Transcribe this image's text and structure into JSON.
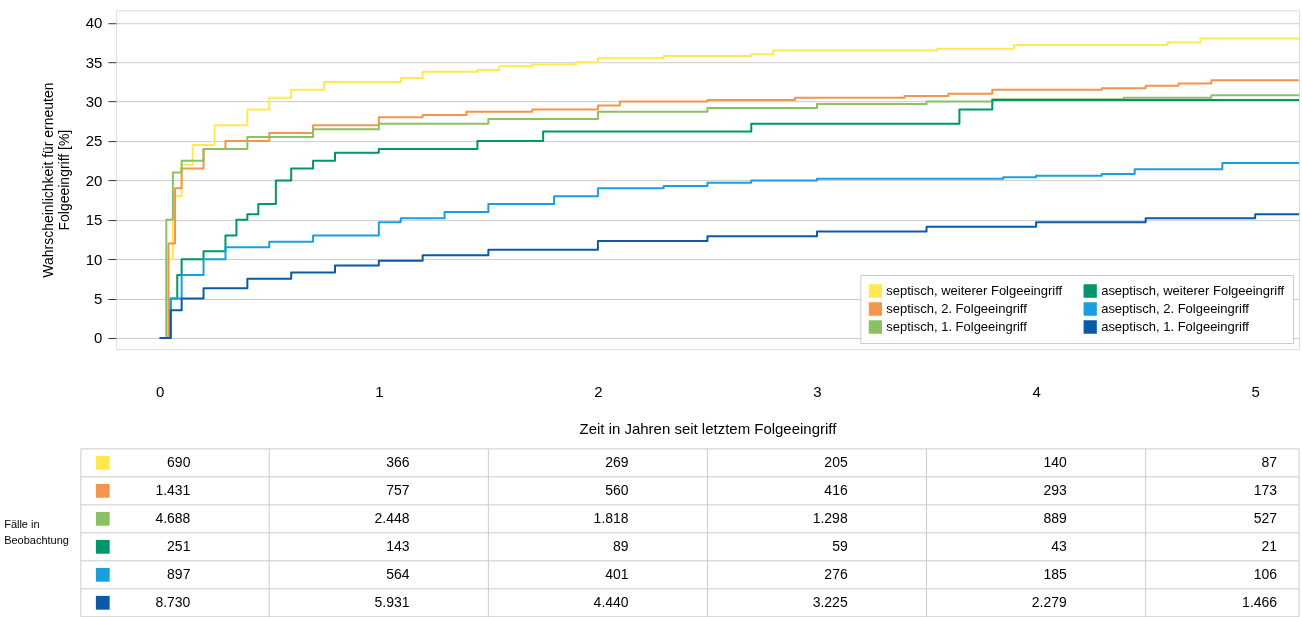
{
  "chart_data": {
    "type": "step",
    "xlabel": "Zeit in Jahren seit letztem Folgeeingriff",
    "ylabel": "Wahrscheinlichkeit für erneuten Folgeeingriff [%]",
    "xlim": [
      -0.2,
      5.2
    ],
    "ylim": [
      -1.4,
      41.6
    ],
    "xticks": [
      0,
      1,
      2,
      3,
      4,
      5
    ],
    "yticks": [
      0,
      5,
      10,
      15,
      20,
      25,
      30,
      35,
      40
    ],
    "grid": "y",
    "legend": "bottom right",
    "series": [
      {
        "name": "septisch, weiterer Folgeeingriff",
        "color": "#ffe94f",
        "x": [
          0,
          0.03,
          0.06,
          0.1,
          0.15,
          0.25,
          0.4,
          0.5,
          0.6,
          0.75,
          1.0,
          1.1,
          1.2,
          1.45,
          1.55,
          1.7,
          1.9,
          2.0,
          2.3,
          2.7,
          2.8,
          3.3,
          3.55,
          3.9,
          4.6,
          4.75,
          5.2
        ],
        "values": [
          0,
          10,
          18,
          22,
          24.5,
          27,
          29,
          30.5,
          31.5,
          32.5,
          32.5,
          33,
          33.8,
          34,
          34.5,
          34.7,
          35,
          35.5,
          35.8,
          36,
          36.5,
          36.5,
          36.7,
          37.2,
          37.5,
          38,
          38
        ]
      },
      {
        "name": "septisch, 2. Folgeeingriff",
        "color": "#f3954f",
        "x": [
          0,
          0.04,
          0.07,
          0.1,
          0.2,
          0.3,
          0.5,
          0.7,
          1.0,
          1.2,
          1.4,
          1.7,
          2.0,
          2.1,
          2.5,
          2.9,
          3.4,
          3.6,
          3.8,
          4.3,
          4.5,
          4.65,
          4.8,
          5.2
        ],
        "values": [
          0,
          12,
          19,
          21.5,
          24,
          25,
          26,
          27,
          28,
          28.3,
          28.7,
          29,
          29.5,
          30,
          30.2,
          30.5,
          30.7,
          31,
          31.5,
          31.7,
          32,
          32.3,
          32.7,
          32.7
        ]
      },
      {
        "name": "septisch, 1. Folgeeingriff",
        "color": "#8cc163",
        "x": [
          0,
          0.03,
          0.06,
          0.1,
          0.2,
          0.4,
          0.7,
          1.0,
          1.5,
          2.0,
          2.5,
          3.0,
          3.5,
          3.8,
          4.4,
          4.8,
          5.2
        ],
        "values": [
          0,
          15,
          21,
          22.5,
          24,
          25.5,
          26.5,
          27.2,
          27.8,
          28.7,
          29.2,
          29.7,
          30,
          30.3,
          30.5,
          30.8,
          30.8
        ]
      },
      {
        "name": "aseptisch, weiterer Folgeeingriff",
        "color": "#00956a",
        "x": [
          0,
          0.05,
          0.08,
          0.1,
          0.2,
          0.3,
          0.35,
          0.4,
          0.45,
          0.53,
          0.6,
          0.7,
          0.8,
          1.0,
          1.45,
          1.75,
          2.7,
          3.65,
          3.8,
          5.2
        ],
        "values": [
          0,
          5,
          8,
          10,
          11,
          13,
          15,
          15.7,
          17,
          20,
          21.5,
          22.5,
          23.5,
          24,
          25,
          26.2,
          27.2,
          29,
          30.2,
          30.2
        ]
      },
      {
        "name": "aseptisch, 2. Folgeeingriff",
        "color": "#1a9ee0",
        "x": [
          0,
          0.05,
          0.1,
          0.2,
          0.3,
          0.5,
          0.7,
          1.0,
          1.1,
          1.3,
          1.5,
          1.8,
          2.0,
          2.3,
          2.5,
          2.7,
          3.0,
          3.85,
          4.0,
          4.3,
          4.45,
          4.85,
          5.2
        ],
        "values": [
          0,
          5,
          8,
          10,
          11.5,
          12.2,
          13,
          14.7,
          15.2,
          16,
          17,
          18,
          19,
          19.3,
          19.7,
          20,
          20.2,
          20.4,
          20.6,
          20.8,
          21.4,
          22.2,
          22.2
        ]
      },
      {
        "name": "aseptisch, 1. Folgeeingriff",
        "color": "#0a5aa8",
        "x": [
          0,
          0.05,
          0.1,
          0.2,
          0.4,
          0.6,
          0.8,
          1.0,
          1.2,
          1.5,
          2.0,
          2.5,
          3.0,
          3.5,
          4.0,
          4.5,
          5.0,
          5.2
        ],
        "values": [
          0,
          3.5,
          5,
          6.3,
          7.5,
          8.3,
          9.2,
          9.8,
          10.5,
          11.2,
          12.3,
          12.9,
          13.5,
          14.1,
          14.7,
          15.2,
          15.7,
          15.8
        ]
      }
    ],
    "annotations": [
      "Fälle in Beobachtung",
      "690",
      "366",
      "269",
      "205",
      "140",
      "87",
      "1.431",
      "757",
      "560",
      "416",
      "293",
      "173",
      "4.688",
      "2.448",
      "1.818",
      "1.298",
      "889",
      "527",
      "251",
      "143",
      "89",
      "59",
      "43",
      "21",
      "897",
      "564",
      "401",
      "276",
      "185",
      "106",
      "8.730",
      "5.931",
      "4.440",
      "3.225",
      "2.279",
      "1.466"
    ]
  }
}
